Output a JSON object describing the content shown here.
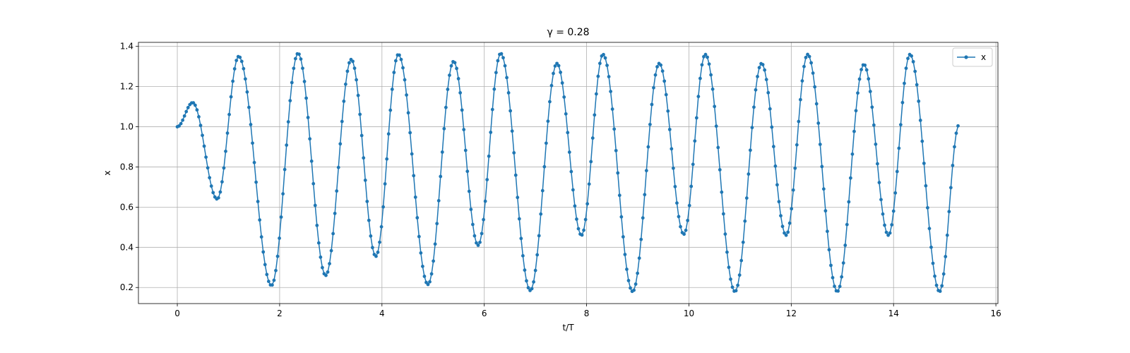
{
  "chart_data": {
    "type": "line",
    "title": "γ = 0.28",
    "xlabel": "t/T",
    "ylabel": "x",
    "xlim": [
      -0.76,
      16.04
    ],
    "ylim": [
      0.12,
      1.42
    ],
    "xticks": [
      0,
      2,
      4,
      6,
      8,
      10,
      12,
      14,
      16
    ],
    "yticks": [
      0.2,
      0.4,
      0.6,
      0.8,
      1.0,
      1.2,
      1.4
    ],
    "xtick_labels": [
      "0",
      "2",
      "4",
      "6",
      "8",
      "10",
      "12",
      "14",
      "16"
    ],
    "ytick_labels": [
      "0.2",
      "0.4",
      "0.6",
      "0.8",
      "1.0",
      "1.2",
      "1.4"
    ],
    "grid": true,
    "legend_position": "top-right",
    "color": "#1f77b4",
    "series": [
      {
        "name": "x",
        "marker": "dot",
        "x_start": 0,
        "x_end": 15.28,
        "extrema": [
          [
            0,
            1.0
          ],
          [
            0.3,
            1.12
          ],
          [
            0.78,
            0.64
          ],
          [
            1.2,
            1.35
          ],
          [
            1.84,
            0.21
          ],
          [
            2.36,
            1.365
          ],
          [
            2.9,
            0.26
          ],
          [
            3.4,
            1.335
          ],
          [
            3.88,
            0.355
          ],
          [
            4.32,
            1.36
          ],
          [
            4.9,
            0.215
          ],
          [
            5.4,
            1.325
          ],
          [
            5.88,
            0.41
          ],
          [
            6.32,
            1.365
          ],
          [
            6.9,
            0.185
          ],
          [
            7.42,
            1.315
          ],
          [
            7.9,
            0.46
          ],
          [
            8.32,
            1.36
          ],
          [
            8.9,
            0.18
          ],
          [
            9.42,
            1.315
          ],
          [
            9.9,
            0.465
          ],
          [
            10.32,
            1.36
          ],
          [
            10.9,
            0.18
          ],
          [
            11.42,
            1.315
          ],
          [
            11.9,
            0.46
          ],
          [
            12.32,
            1.36
          ],
          [
            12.9,
            0.18
          ],
          [
            13.42,
            1.31
          ],
          [
            13.9,
            0.46
          ],
          [
            14.32,
            1.36
          ],
          [
            14.9,
            0.18
          ],
          [
            15.28,
            1.01
          ]
        ]
      }
    ]
  }
}
